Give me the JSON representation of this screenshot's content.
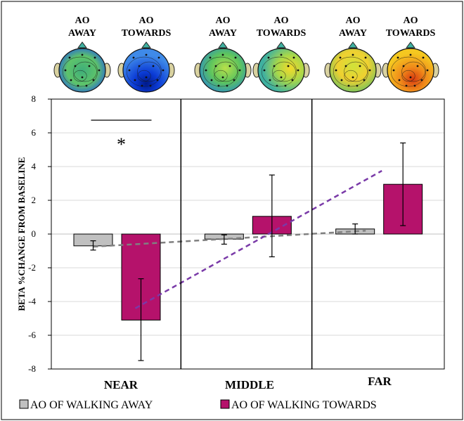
{
  "chart_data": {
    "type": "bar",
    "ylabel": "BETA %CHANGE FROM BASELINE",
    "ylim": [
      -8,
      8
    ],
    "yticks": [
      "8",
      "6",
      "4",
      "2",
      "0",
      "-2",
      "-4",
      "-6",
      "-8"
    ],
    "categories": [
      "NEAR",
      "MIDDLE",
      "FAR"
    ],
    "series": [
      {
        "name": "AO OF WALKING AWAY",
        "color": "#c0c0c0",
        "values": [
          -0.7,
          -0.3,
          0.3
        ],
        "err_low": [
          -0.95,
          -0.6,
          0.0
        ],
        "err_high": [
          -0.4,
          -0.05,
          0.6
        ]
      },
      {
        "name": "AO OF WALKING TOWARDS",
        "color": "#b5126b",
        "values": [
          -5.1,
          1.05,
          2.95
        ],
        "err_low": [
          -7.5,
          -1.35,
          0.5
        ],
        "err_high": [
          -2.65,
          3.5,
          5.4
        ]
      }
    ],
    "trendlines": [
      {
        "series": "AO OF WALKING AWAY",
        "color": "#808080",
        "from": [
          -0.75,
          0.2
        ]
      },
      {
        "series": "AO OF WALKING TOWARDS",
        "color": "#7a3aa8",
        "from": [
          -4.4,
          3.75
        ]
      }
    ],
    "significance": {
      "label": "*",
      "category": "NEAR"
    },
    "topomap_labels": [
      [
        "AO",
        "AWAY"
      ],
      [
        "AO",
        "TOWARDS"
      ],
      [
        "AO",
        "AWAY"
      ],
      [
        "AO",
        "TOWARDS"
      ],
      [
        "AO",
        "AWAY"
      ],
      [
        "AO",
        "TOWARDS"
      ]
    ],
    "legend_position": "bottom",
    "grid": true
  }
}
